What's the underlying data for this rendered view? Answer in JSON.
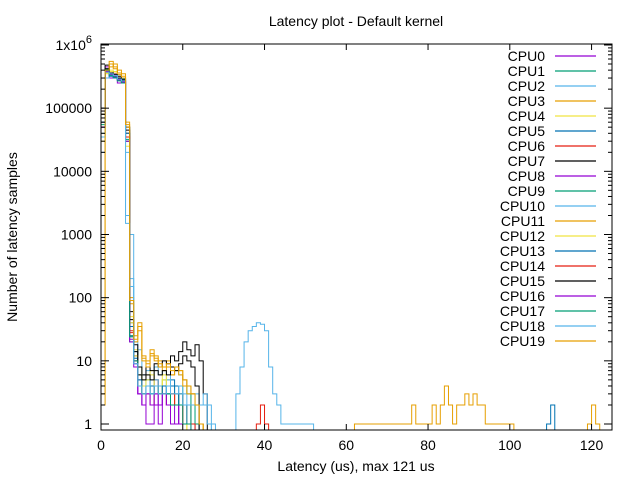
{
  "chart_data": {
    "type": "step",
    "title": "Latency plot - Default kernel",
    "xlabel": "Latency (us), max 121 us",
    "ylabel": "Number of latency samples",
    "xlim": [
      0,
      125
    ],
    "ylim": [
      0.8,
      1000000
    ],
    "yscale": "log",
    "grid": false,
    "legend_position": "top-right",
    "x_ticks": [
      0,
      20,
      40,
      60,
      80,
      100,
      120
    ],
    "x_tick_labels": [
      "0",
      "20",
      "40",
      "60",
      "80",
      "100",
      "120"
    ],
    "y_ticks": [
      1,
      10,
      100,
      1000,
      10000,
      100000,
      1000000
    ],
    "y_tick_labels": [
      {
        "base": "1",
        "sup": ""
      },
      {
        "base": "10",
        "sup": ""
      },
      {
        "base": "100",
        "sup": ""
      },
      {
        "base": "1000",
        "sup": ""
      },
      {
        "base": "10000",
        "sup": ""
      },
      {
        "base": "100000",
        "sup": ""
      },
      {
        "base": "1x10",
        "sup": "6"
      }
    ],
    "series": [
      {
        "name": "CPU0",
        "color": "#9400d3",
        "x": [
          0,
          1,
          2,
          3,
          4,
          5,
          6,
          7,
          8,
          9,
          10,
          11,
          12,
          13,
          14,
          15,
          16,
          17,
          18,
          19,
          20,
          21,
          22,
          23
        ],
        "y": [
          60000,
          450000,
          300000,
          350000,
          250000,
          280000,
          30000,
          25,
          10,
          3,
          2,
          1,
          1,
          2,
          1,
          3,
          2,
          1,
          1,
          2,
          1,
          1,
          1,
          1
        ]
      },
      {
        "name": "CPU1",
        "color": "#009e73",
        "x": [
          0,
          1,
          2,
          3,
          4,
          5,
          6,
          7,
          8,
          9,
          10,
          11,
          12,
          13,
          14,
          15,
          16,
          17,
          18,
          19,
          20,
          21,
          22,
          23
        ],
        "y": [
          50000,
          420000,
          350000,
          320000,
          300000,
          260000,
          40000,
          20,
          12,
          4,
          3,
          5,
          3,
          4,
          3,
          5,
          4,
          3,
          2,
          3,
          4,
          3,
          2,
          1
        ]
      },
      {
        "name": "CPU2",
        "color": "#56b4e9",
        "x": [
          0,
          1,
          2,
          3,
          4,
          5,
          6,
          7,
          8,
          9,
          10,
          11,
          12,
          13,
          14,
          15,
          16,
          17,
          18,
          19,
          20,
          21,
          22,
          23,
          24,
          25,
          26,
          33,
          34,
          35,
          36,
          37,
          38,
          39,
          40,
          41,
          42,
          43,
          44,
          45,
          46,
          47,
          48,
          49,
          50,
          51
        ],
        "y": [
          20000,
          300000,
          380000,
          360000,
          280000,
          300000,
          20000,
          1000,
          20,
          15,
          6,
          7,
          5,
          8,
          6,
          7,
          5,
          8,
          7,
          6,
          5,
          4,
          3,
          2,
          2,
          2,
          1,
          3,
          8,
          20,
          30,
          35,
          40,
          38,
          30,
          8,
          3,
          2,
          1,
          1,
          1,
          1,
          1,
          1,
          1,
          1
        ]
      },
      {
        "name": "CPU3",
        "color": "#e69f00",
        "x": [
          0,
          1,
          2,
          3,
          4,
          5,
          6,
          7,
          8,
          9,
          10,
          11,
          12,
          13,
          14,
          15,
          16,
          17,
          18,
          19,
          20,
          21,
          22,
          23,
          24
        ],
        "y": [
          80000,
          400000,
          450000,
          500000,
          400000,
          350000,
          60000,
          100,
          25,
          40,
          12,
          10,
          15,
          12,
          10,
          8,
          10,
          6,
          8,
          7,
          5,
          4,
          3,
          2,
          1
        ]
      },
      {
        "name": "CPU4",
        "color": "#f0e442",
        "x": [
          0,
          1,
          2,
          3,
          4,
          5,
          6,
          7,
          8,
          9,
          10,
          11,
          12,
          13,
          14,
          15,
          16,
          17,
          18,
          19,
          20
        ],
        "y": [
          40000,
          350000,
          400000,
          380000,
          300000,
          280000,
          30000,
          50,
          15,
          8,
          5,
          6,
          7,
          5,
          4,
          6,
          5,
          4,
          3,
          3,
          2
        ]
      },
      {
        "name": "CPU5",
        "color": "#0072b2",
        "x": [
          0,
          1,
          2,
          3,
          4,
          5,
          6,
          7,
          8,
          9,
          10,
          11,
          12,
          13,
          14,
          15,
          16,
          17,
          18,
          19,
          20,
          21,
          22,
          109,
          110
        ],
        "y": [
          70000,
          400000,
          320000,
          300000,
          280000,
          290000,
          50000,
          40,
          14,
          6,
          4,
          5,
          4,
          5,
          3,
          4,
          3,
          5,
          4,
          3,
          2,
          2,
          1,
          1,
          2
        ]
      },
      {
        "name": "CPU6",
        "color": "#e51e10",
        "x": [
          0,
          1,
          2,
          3,
          4,
          5,
          6,
          7,
          8,
          9,
          10,
          11,
          12,
          13,
          14,
          15,
          16,
          17,
          18,
          19,
          20,
          21,
          22,
          38,
          39,
          40
        ],
        "y": [
          90000,
          380000,
          360000,
          340000,
          300000,
          250000,
          40000,
          30,
          12,
          5,
          3,
          4,
          3,
          5,
          4,
          3,
          4,
          3,
          2,
          3,
          2,
          2,
          1,
          1,
          2,
          1
        ]
      },
      {
        "name": "CPU7",
        "color": "#000000",
        "x": [
          0,
          1,
          2,
          3,
          4,
          5,
          6,
          7,
          8,
          9,
          10,
          11,
          12,
          13,
          14,
          15,
          16,
          17,
          18,
          19,
          20,
          21,
          22,
          23,
          24,
          25
        ],
        "y": [
          100000,
          480000,
          380000,
          360000,
          320000,
          300000,
          50000,
          60,
          18,
          8,
          6,
          8,
          7,
          9,
          8,
          10,
          9,
          12,
          10,
          14,
          20,
          15,
          12,
          18,
          10,
          3
        ]
      },
      {
        "name": "CPU8",
        "color": "#9400d3",
        "x": [
          0,
          1,
          2,
          3,
          4,
          5,
          6,
          7,
          8,
          9,
          10,
          11,
          12,
          13,
          14,
          15,
          16,
          17,
          18,
          19,
          20,
          21,
          22
        ],
        "y": [
          50000,
          400000,
          350000,
          330000,
          290000,
          270000,
          35000,
          20,
          8,
          3,
          2,
          3,
          2,
          3,
          2,
          3,
          2,
          1,
          1,
          2,
          1,
          1,
          1
        ]
      },
      {
        "name": "CPU9",
        "color": "#009e73",
        "x": [
          0,
          1,
          2,
          3,
          4,
          5,
          6,
          7,
          8,
          9,
          10,
          11,
          12,
          13,
          14,
          15,
          16,
          17,
          18,
          19,
          20,
          21,
          22
        ],
        "y": [
          60000,
          410000,
          340000,
          320000,
          280000,
          260000,
          30000,
          25,
          9,
          4,
          3,
          4,
          3,
          4,
          3,
          4,
          3,
          2,
          2,
          3,
          2,
          2,
          1
        ]
      },
      {
        "name": "CPU10",
        "color": "#56b4e9",
        "x": [
          0,
          1,
          2,
          3,
          4,
          5,
          6,
          7,
          8,
          9,
          10,
          11,
          12,
          13,
          14,
          15,
          16,
          17,
          18,
          19,
          20,
          21,
          22,
          23,
          24,
          25,
          26
        ],
        "y": [
          40000,
          390000,
          360000,
          340000,
          300000,
          280000,
          2000,
          200,
          10,
          5,
          4,
          5,
          3,
          5,
          4,
          3,
          5,
          4,
          3,
          4,
          3,
          2,
          2,
          3,
          2,
          2,
          1
        ]
      },
      {
        "name": "CPU11",
        "color": "#e69f00",
        "x": [
          0,
          1,
          2,
          3,
          4,
          5,
          6,
          7,
          8,
          9,
          10,
          11,
          12,
          13,
          14,
          15,
          16,
          17,
          18,
          19,
          20,
          21,
          22,
          23,
          24,
          62,
          63,
          64,
          65,
          66,
          67,
          68,
          69,
          70,
          71,
          72,
          73,
          74,
          75,
          76,
          77,
          78,
          79,
          80,
          81,
          82,
          83,
          84,
          85,
          86,
          87,
          88,
          89,
          90,
          91,
          92,
          93,
          94,
          95,
          96,
          97,
          98,
          99,
          100,
          119,
          120,
          121
        ],
        "y": [
          2,
          380000,
          500000,
          420000,
          340000,
          300000,
          50000,
          80,
          20,
          30,
          10,
          8,
          12,
          10,
          8,
          7,
          8,
          6,
          7,
          6,
          4,
          3,
          3,
          2,
          1,
          1,
          1,
          1,
          1,
          1,
          1,
          1,
          1,
          1,
          1,
          1,
          1,
          1,
          1,
          2,
          1,
          1,
          1,
          1,
          2,
          1,
          2,
          4,
          2,
          1,
          2,
          2,
          3,
          2,
          3,
          2,
          2,
          1,
          1,
          1,
          1,
          1,
          1,
          1,
          1,
          2,
          1
        ]
      },
      {
        "name": "CPU12",
        "color": "#f0e442",
        "x": [
          0,
          1,
          2,
          3,
          4,
          5,
          6,
          7,
          8,
          9,
          10,
          11,
          12,
          13,
          14,
          15,
          16,
          17,
          18,
          19,
          20
        ],
        "y": [
          30000,
          360000,
          380000,
          360000,
          290000,
          270000,
          25000,
          40,
          12,
          6,
          4,
          5,
          6,
          4,
          3,
          5,
          4,
          3,
          2,
          2,
          1
        ]
      },
      {
        "name": "CPU13",
        "color": "#0072b2",
        "x": [
          0,
          1,
          2,
          3,
          4,
          5,
          6,
          7,
          8,
          9,
          10,
          11,
          12,
          13,
          14,
          15,
          16,
          17,
          18,
          19,
          20,
          21,
          22
        ],
        "y": [
          60000,
          390000,
          330000,
          310000,
          280000,
          270000,
          40000,
          35,
          11,
          5,
          3,
          4,
          3,
          4,
          3,
          4,
          3,
          4,
          3,
          2,
          2,
          1,
          1
        ]
      },
      {
        "name": "CPU14",
        "color": "#e51e10",
        "x": [
          0,
          1,
          2,
          3,
          4,
          5,
          6,
          7,
          8,
          9,
          10,
          11,
          12,
          13,
          14,
          15,
          16,
          17,
          18,
          19,
          20,
          21,
          22
        ],
        "y": [
          70000,
          370000,
          350000,
          330000,
          290000,
          260000,
          35000,
          28,
          10,
          4,
          3,
          3,
          2,
          4,
          3,
          3,
          2,
          3,
          2,
          2,
          1,
          1,
          1
        ]
      },
      {
        "name": "CPU15",
        "color": "#000000",
        "x": [
          0,
          1,
          2,
          3,
          4,
          5,
          6,
          7,
          8,
          9,
          10,
          11,
          12,
          13,
          14,
          15,
          16,
          17,
          18,
          19,
          20,
          21,
          22,
          23
        ],
        "y": [
          80000,
          420000,
          360000,
          340000,
          300000,
          280000,
          45000,
          45,
          14,
          6,
          5,
          6,
          5,
          7,
          6,
          7,
          6,
          8,
          7,
          9,
          12,
          10,
          8,
          4
        ]
      },
      {
        "name": "CPU16",
        "color": "#9400d3",
        "x": [
          0,
          1,
          2,
          3,
          4,
          5,
          6,
          7,
          8,
          9,
          10,
          11,
          12,
          13,
          14,
          15,
          16,
          17,
          18,
          19,
          20,
          21
        ],
        "y": [
          50000,
          380000,
          340000,
          320000,
          280000,
          260000,
          30000,
          22,
          9,
          3,
          2,
          3,
          2,
          3,
          2,
          3,
          2,
          1,
          2,
          1,
          1,
          1
        ]
      },
      {
        "name": "CPU17",
        "color": "#009e73",
        "x": [
          0,
          1,
          2,
          3,
          4,
          5,
          6,
          7,
          8,
          9,
          10,
          11,
          12,
          13,
          14,
          15,
          16,
          17,
          18,
          19,
          20,
          21
        ],
        "y": [
          55000,
          400000,
          330000,
          310000,
          270000,
          250000,
          32000,
          24,
          10,
          4,
          3,
          4,
          3,
          4,
          3,
          3,
          3,
          2,
          2,
          2,
          1,
          1
        ]
      },
      {
        "name": "CPU18",
        "color": "#56b4e9",
        "x": [
          0,
          1,
          2,
          3,
          4,
          5,
          6,
          7,
          8,
          9,
          10,
          11,
          12,
          13,
          14,
          15,
          16,
          17,
          18,
          19,
          20,
          21,
          22,
          23,
          24,
          25,
          26,
          27
        ],
        "y": [
          35000,
          370000,
          350000,
          330000,
          290000,
          270000,
          1500,
          150,
          9,
          4,
          3,
          4,
          3,
          4,
          3,
          3,
          4,
          3,
          3,
          3,
          2,
          2,
          2,
          2,
          2,
          3,
          2,
          1
        ]
      },
      {
        "name": "CPU19",
        "color": "#e69f00",
        "x": [
          0,
          1,
          2,
          3,
          4,
          5,
          6,
          7,
          8,
          9,
          10,
          11,
          12,
          13,
          14,
          15,
          16,
          17,
          18,
          19,
          20,
          21,
          22,
          23,
          24
        ],
        "y": [
          3,
          400000,
          550000,
          450000,
          360000,
          320000,
          55000,
          90,
          22,
          35,
          11,
          9,
          13,
          11,
          9,
          8,
          9,
          7,
          8,
          7,
          5,
          4,
          3,
          2,
          1
        ]
      }
    ]
  }
}
